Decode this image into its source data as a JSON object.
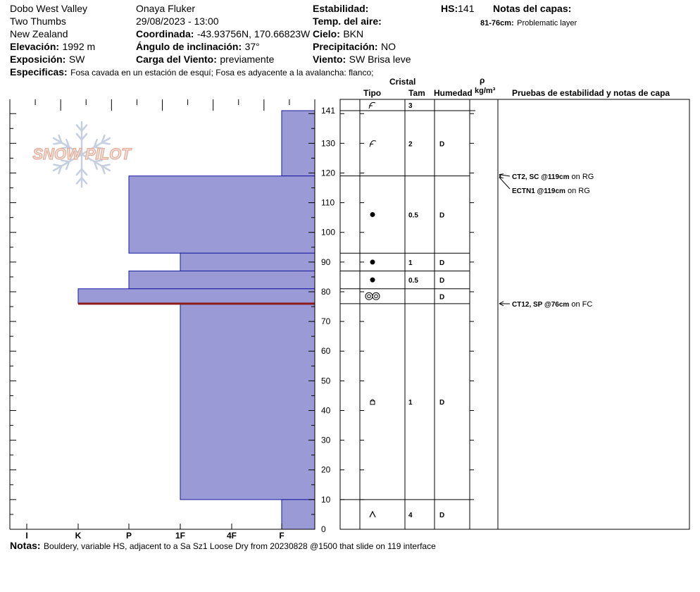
{
  "header": {
    "location": "Dobo West Valley",
    "area": "Two Thumbs",
    "country": "New Zealand",
    "observer": "Onaya Fluker",
    "datetime": "29/08/2023 - 13:00",
    "elevation_label": "Elevación:",
    "elevation_value": "1992 m",
    "aspect_label": "Exposición:",
    "aspect_value": "SW",
    "coord_label": "Coordinada:",
    "coord_value": "-43.93756N, 170.66823W",
    "slope_label": "Ángulo de inclinación:",
    "slope_value": "37°",
    "wind_load_label": "Carga del Viento:",
    "wind_load_value": "previamente",
    "stability_label": "Estabilidad:",
    "air_temp_label": "Temp. del aire:",
    "sky_label": "Cielo:",
    "sky_value": "BKN",
    "precip_label": "Precipitación:",
    "precip_value": "NO",
    "wind_label": "Viento:",
    "wind_value": "SW  Brisa leve",
    "hs_label": "HS:",
    "hs_value": "141",
    "layer_notes_label": "Notas del capas:",
    "layer_note_range": "81-76cm:",
    "layer_note_text": "Problematic layer",
    "specifics_label": "Especificas:",
    "specifics_value": "Fosa cavada en un estación de esquí; Fosa es adyacente a la avalancha: flanco;"
  },
  "columns": {
    "cristal": "Cristal",
    "tipo": "Tipo",
    "tam": "Tam",
    "humedad": "Humedad",
    "rho": "ρ",
    "density_unit": "kg/m³",
    "tests": "Pruebas de estabilidad y notas de capa"
  },
  "logo_text": "SNOW PILOT",
  "footer": {
    "notes_label": "Notas:",
    "notes_value": "Bouldery, variable HS, adjacent to a Sa Sz1 Loose Dry from 20230828 @1500 that slide on 119 interface"
  },
  "chart_data": {
    "type": "bar",
    "orientation": "horizontal",
    "x_categories": [
      "I",
      "K",
      "P",
      "1F",
      "4F",
      "F"
    ],
    "y_ticks": [
      0,
      10,
      20,
      30,
      40,
      50,
      60,
      70,
      80,
      90,
      100,
      110,
      120,
      130,
      141
    ],
    "ylim": [
      0,
      141
    ],
    "layers": [
      {
        "top": 141,
        "bottom": 119,
        "hardness": "F",
        "type": "precipitation-particles",
        "size": "2",
        "wetness": "D"
      },
      {
        "top": 119,
        "bottom": 93,
        "hardness": "P",
        "type": "rounded",
        "size": "0.5",
        "wetness": "D"
      },
      {
        "top": 93,
        "bottom": 87,
        "hardness": "1F",
        "type": "rounded",
        "size": "1",
        "wetness": "D"
      },
      {
        "top": 87,
        "bottom": 81,
        "hardness": "P",
        "type": "rounded",
        "size": "0.5",
        "wetness": "D"
      },
      {
        "top": 81,
        "bottom": 76,
        "hardness": "K",
        "type": "melt-forms",
        "size": "",
        "wetness": "D"
      },
      {
        "top": 76,
        "bottom": 10,
        "hardness": "1F",
        "type": "faceted-rounded",
        "size": "1",
        "wetness": "D"
      },
      {
        "top": 10,
        "bottom": 0,
        "hardness": "F",
        "type": "depth-hoar",
        "size": "4",
        "wetness": "D"
      }
    ],
    "top_strip": {
      "type": "precipitation-particles",
      "size": "3"
    },
    "problem_layer": 76,
    "tests": [
      {
        "depth": 119,
        "bold": "CT2, SC @119cm",
        "rest": " on RG"
      },
      {
        "depth": 119,
        "bold": "ECTN1 @119cm",
        "rest": " on RG"
      },
      {
        "depth": 76,
        "bold": "CT12, SP @76cm",
        "rest": " on FC"
      }
    ]
  }
}
